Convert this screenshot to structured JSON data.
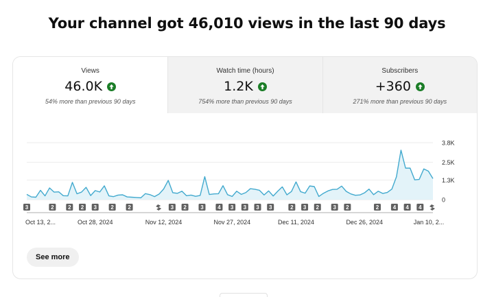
{
  "headline": "Your channel got 46,010 views in the last 90 days",
  "tabs": [
    {
      "title": "Views",
      "value": "46.0K",
      "note": "54% more than previous 90 days",
      "active": true
    },
    {
      "title": "Watch time (hours)",
      "value": "1.2K",
      "note": "754% more than previous 90 days",
      "active": false
    },
    {
      "title": "Subscribers",
      "value": "+360",
      "note": "271% more than previous 90 days",
      "active": false
    }
  ],
  "colors": {
    "line": "#41a9ce",
    "fill": "#e3f3f9",
    "badge": "#606060",
    "up": "#1b7d27",
    "grid": "#e5e5e5"
  },
  "chart_data": {
    "type": "area",
    "y_ticks": [
      "3.8K",
      "2.5K",
      "1.3K",
      "0"
    ],
    "y_tick_values": [
      3800,
      2500,
      1300,
      0
    ],
    "ylim": [
      0,
      3800
    ],
    "x_tick_labels": [
      "Oct 13, 2...",
      "Oct 28, 2024",
      "Nov 12, 2024",
      "Nov 27, 2024",
      "Dec 11, 2024",
      "Dec 26, 2024",
      "Jan 10, 2..."
    ],
    "x_tick_days": [
      0,
      15,
      30,
      45,
      59,
      74,
      89
    ],
    "values": [
      350,
      180,
      160,
      620,
      250,
      780,
      500,
      520,
      260,
      250,
      1150,
      390,
      500,
      820,
      270,
      600,
      510,
      920,
      250,
      200,
      300,
      320,
      180,
      160,
      140,
      120,
      400,
      330,
      200,
      370,
      710,
      1280,
      460,
      420,
      560,
      260,
      300,
      220,
      280,
      1530,
      340,
      380,
      390,
      930,
      330,
      210,
      560,
      350,
      470,
      730,
      690,
      620,
      310,
      580,
      240,
      560,
      850,
      320,
      540,
      1180,
      530,
      430,
      910,
      870,
      210,
      420,
      580,
      680,
      690,
      900,
      550,
      380,
      290,
      310,
      450,
      700,
      330,
      560,
      410,
      480,
      700,
      1520,
      3300,
      2100,
      2100,
      1320,
      1350,
      2050,
      1900,
      1400
    ],
    "markers": [
      {
        "day": 0,
        "label": "3"
      },
      {
        "day": 6,
        "label": "2"
      },
      {
        "day": 10,
        "label": "2"
      },
      {
        "day": 13,
        "label": "2"
      },
      {
        "day": 16,
        "label": "3"
      },
      {
        "day": 20,
        "label": "2"
      },
      {
        "day": 24,
        "label": "2"
      },
      {
        "day": 34,
        "label": "3"
      },
      {
        "day": 37,
        "label": "2"
      },
      {
        "day": 41,
        "label": "3"
      },
      {
        "day": 45,
        "label": "4"
      },
      {
        "day": 48,
        "label": "3"
      },
      {
        "day": 51,
        "label": "3"
      },
      {
        "day": 54,
        "label": "3"
      },
      {
        "day": 57,
        "label": "3"
      },
      {
        "day": 62,
        "label": "2"
      },
      {
        "day": 65,
        "label": "3"
      },
      {
        "day": 68,
        "label": "2"
      },
      {
        "day": 72,
        "label": "3"
      },
      {
        "day": 75,
        "label": "2"
      },
      {
        "day": 82,
        "label": "2"
      },
      {
        "day": 86,
        "label": "4"
      },
      {
        "day": 89,
        "label": "4"
      },
      {
        "day": 92,
        "label": "4"
      }
    ],
    "shorts_markers": [
      {
        "day": 31
      },
      {
        "day": 95
      }
    ]
  },
  "see_more_label": "See more"
}
